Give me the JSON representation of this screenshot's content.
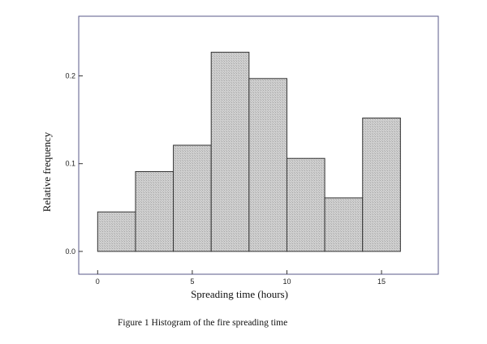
{
  "chart_data": {
    "type": "bar",
    "bins": [
      {
        "x0": 0,
        "x1": 2,
        "value": 0.045
      },
      {
        "x0": 2,
        "x1": 4,
        "value": 0.091
      },
      {
        "x0": 4,
        "x1": 6,
        "value": 0.121
      },
      {
        "x0": 6,
        "x1": 8,
        "value": 0.227
      },
      {
        "x0": 8,
        "x1": 10,
        "value": 0.197
      },
      {
        "x0": 10,
        "x1": 12,
        "value": 0.106
      },
      {
        "x0": 12,
        "x1": 14,
        "value": 0.061
      },
      {
        "x0": 14,
        "x1": 16,
        "value": 0.152
      }
    ],
    "xlabel": "Spreading time (hours)",
    "ylabel": "Relative frequency",
    "xticks": [
      {
        "value": 0,
        "label": "0"
      },
      {
        "value": 5,
        "label": "5"
      },
      {
        "value": 10,
        "label": "10"
      },
      {
        "value": 15,
        "label": "15"
      }
    ],
    "yticks": [
      {
        "value": 0.0,
        "label": "0.0"
      },
      {
        "value": 0.1,
        "label": "0.1"
      },
      {
        "value": 0.2,
        "label": "0.2"
      }
    ],
    "xlim": [
      -1,
      18
    ],
    "ylim": [
      -0.026,
      0.268
    ],
    "grid": false,
    "bar_fill": "#c8c8c8",
    "bar_stroke": "#333333",
    "frame_color": "#5a5a8a"
  },
  "caption": "Figure 1 Histogram of the fire spreading time"
}
